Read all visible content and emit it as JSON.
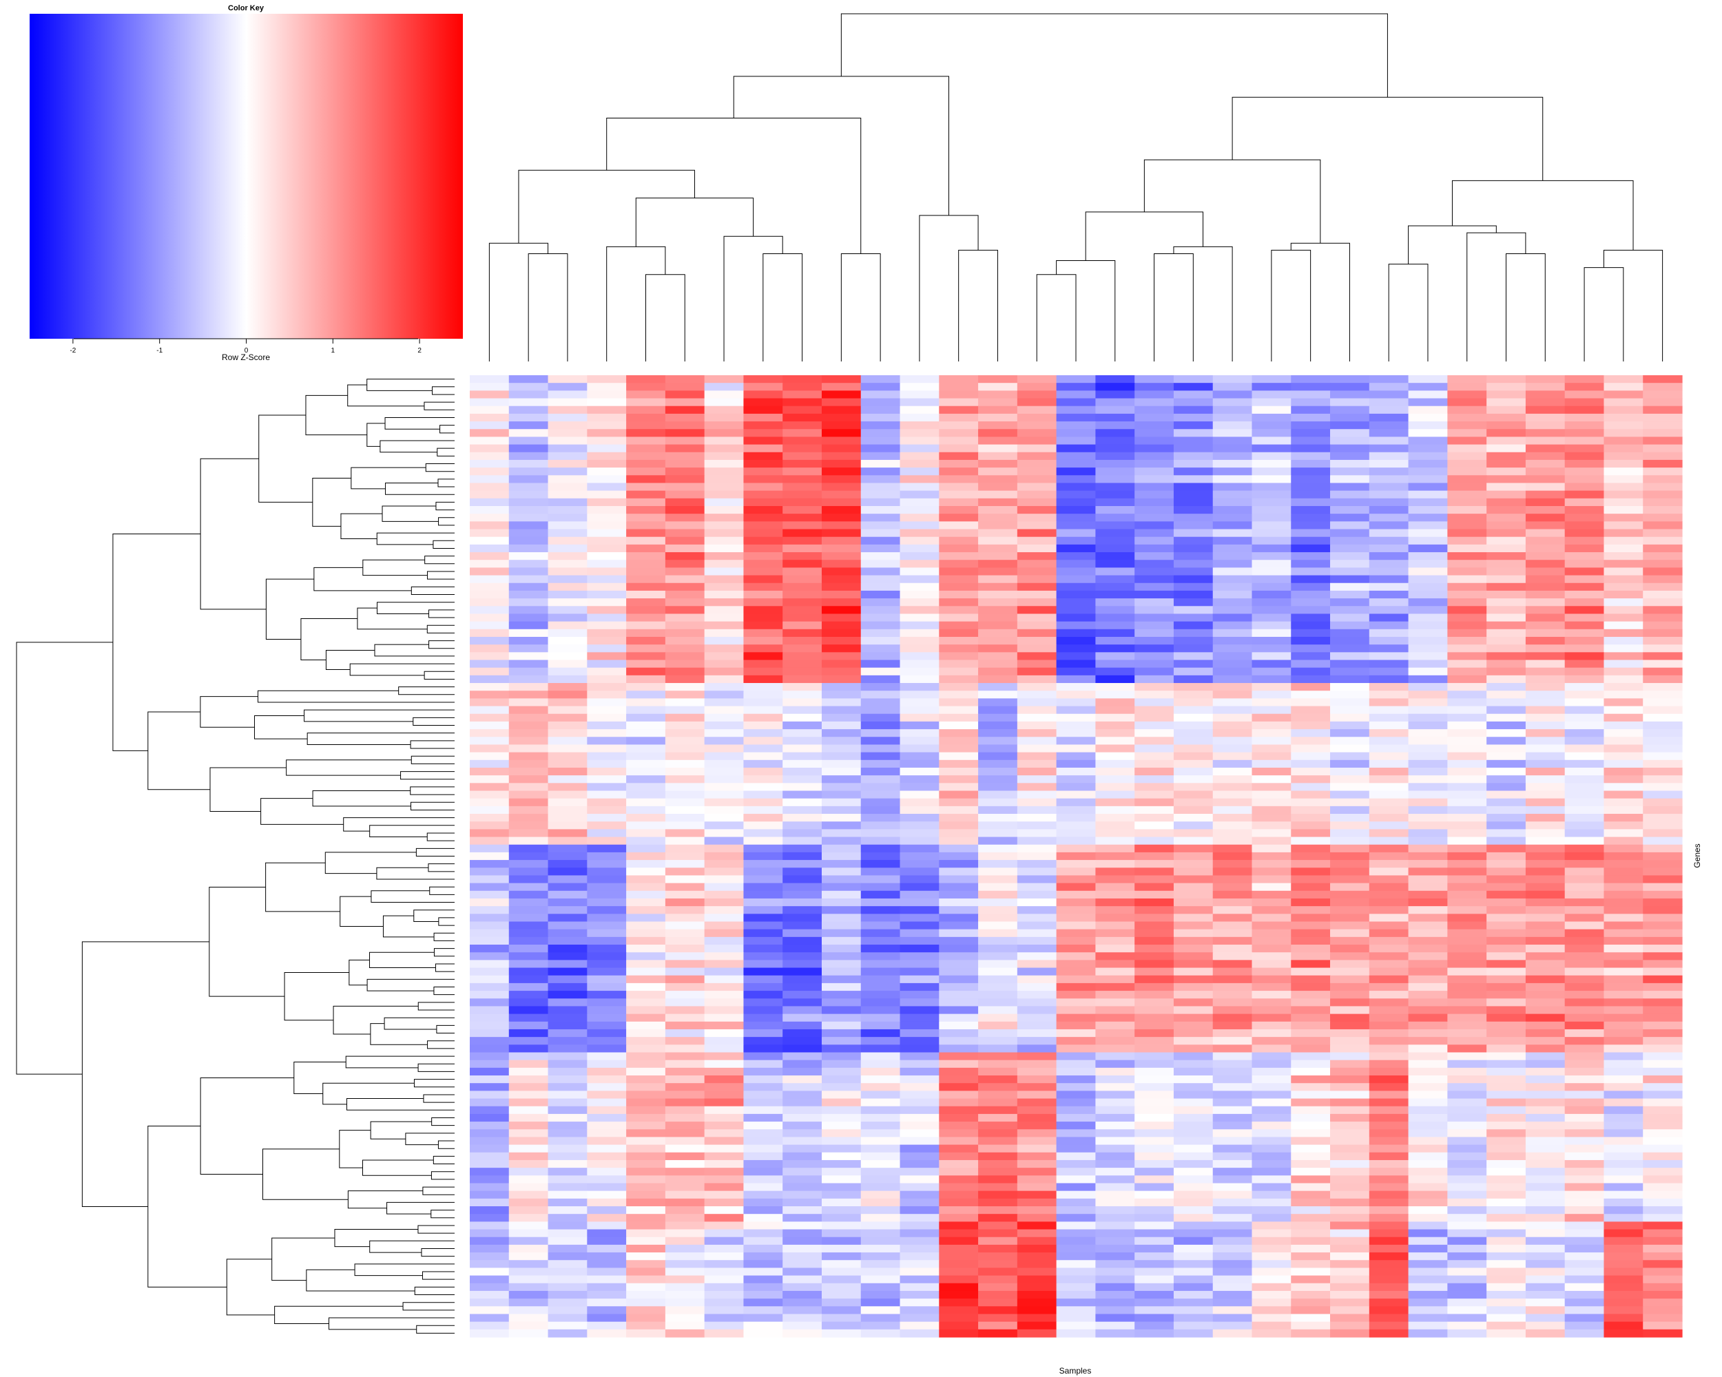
{
  "chart_data": {
    "type": "heatmap",
    "title": "",
    "xlabel": "Samples",
    "ylabel": "Genes",
    "n_rows": 125,
    "n_cols": 31,
    "value_range": [
      -2.5,
      2.5
    ],
    "colors": {
      "low": "#0000ff",
      "mid": "#ffffff",
      "high": "#ff0000",
      "line": "#000000"
    },
    "color_key": {
      "title": "Color Key",
      "label": "Row Z-Score",
      "ticks": [
        -2,
        -1,
        0,
        1,
        2
      ],
      "tick_labels": [
        "-2",
        "-1",
        "0",
        "1",
        "2"
      ]
    },
    "row_clusters": [
      {
        "rows": [
          0,
          40
        ],
        "profile": [
          0.1,
          -0.6,
          -0.2,
          0.2,
          1.0,
          1.2,
          0.3,
          1.6,
          1.5,
          1.7,
          -0.6,
          0.0,
          0.8,
          0.9,
          1.0,
          -1.4,
          -1.4,
          -1.1,
          -1.2,
          -0.8,
          -0.7,
          -1.2,
          -0.9,
          -0.9,
          -0.5,
          0.9,
          0.8,
          1.0,
          1.1,
          0.4,
          0.9
        ]
      },
      {
        "rows": [
          40,
          61
        ],
        "profile": [
          0.3,
          0.6,
          0.5,
          0.0,
          -0.3,
          0.2,
          -0.2,
          0.0,
          -0.3,
          -0.4,
          -0.9,
          -0.3,
          0.6,
          -0.6,
          0.2,
          -0.3,
          0.3,
          0.2,
          0.1,
          0.1,
          0.2,
          0.3,
          -0.2,
          0.1,
          -0.1,
          0.0,
          -0.3,
          0.2,
          -0.3,
          0.5,
          0.2
        ]
      },
      {
        "rows": [
          61,
          88
        ],
        "profile": [
          -0.6,
          -1.3,
          -1.3,
          -1.2,
          0.1,
          0.4,
          0.2,
          -1.3,
          -1.3,
          -0.8,
          -1.2,
          -1.2,
          -0.7,
          0.0,
          -0.3,
          1.0,
          1.0,
          1.1,
          0.8,
          0.9,
          0.6,
          1.1,
          0.9,
          0.8,
          0.8,
          1.1,
          1.0,
          1.1,
          1.0,
          0.9,
          1.0
        ]
      },
      {
        "rows": [
          88,
          110
        ],
        "profile": [
          -0.8,
          0.2,
          -0.3,
          0.1,
          0.5,
          0.6,
          0.7,
          -0.4,
          -0.5,
          -0.2,
          -0.2,
          -0.4,
          1.2,
          1.3,
          1.2,
          -0.7,
          -0.3,
          -0.2,
          -0.2,
          -0.4,
          -0.3,
          0.4,
          0.5,
          1.2,
          0.2,
          -0.2,
          0.2,
          0.0,
          0.4,
          -0.2,
          0.1
        ]
      },
      {
        "rows": [
          110,
          125
        ],
        "profile": [
          -0.5,
          -0.3,
          -0.4,
          -0.5,
          0.5,
          0.1,
          -0.2,
          -0.5,
          -0.4,
          -0.4,
          -0.5,
          -0.3,
          2.0,
          1.6,
          2.0,
          -0.4,
          -0.6,
          -0.6,
          -0.5,
          -0.4,
          0.4,
          0.6,
          0.5,
          1.9,
          -0.6,
          -0.4,
          0.2,
          0.0,
          -0.3,
          1.6,
          1.2
        ]
      }
    ],
    "noise_amplitude": 0.55,
    "noise_seed": 1234567
  }
}
